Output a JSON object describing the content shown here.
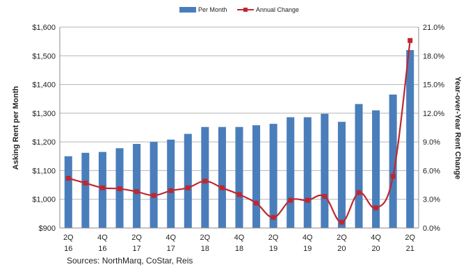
{
  "chart_data": {
    "type": "bar",
    "legend_position": "top-center",
    "grid": true,
    "categories": [
      "2Q 16",
      "3Q 16",
      "4Q 16",
      "1Q 17",
      "2Q 17",
      "3Q 17",
      "4Q 17",
      "1Q 18",
      "2Q 18",
      "3Q 18",
      "4Q 18",
      "1Q 19",
      "2Q 19",
      "3Q 19",
      "4Q 19",
      "1Q 20",
      "2Q 20",
      "3Q 20",
      "4Q 20",
      "1Q 21",
      "2Q 21"
    ],
    "tick_labels": [
      {
        "index": 0,
        "top": "2Q",
        "bottom": "16"
      },
      {
        "index": 2,
        "top": "4Q",
        "bottom": "16"
      },
      {
        "index": 4,
        "top": "2Q",
        "bottom": "17"
      },
      {
        "index": 6,
        "top": "4Q",
        "bottom": "17"
      },
      {
        "index": 8,
        "top": "2Q",
        "bottom": "18"
      },
      {
        "index": 10,
        "top": "4Q",
        "bottom": "18"
      },
      {
        "index": 12,
        "top": "2Q",
        "bottom": "19"
      },
      {
        "index": 14,
        "top": "4Q",
        "bottom": "19"
      },
      {
        "index": 16,
        "top": "2Q",
        "bottom": "20"
      },
      {
        "index": 18,
        "top": "4Q",
        "bottom": "20"
      },
      {
        "index": 20,
        "top": "2Q",
        "bottom": "21"
      }
    ],
    "series": [
      {
        "name": "Per Month",
        "type": "bar",
        "axis": "left",
        "color": "#4A7EBB",
        "values": [
          1150,
          1162,
          1165,
          1178,
          1193,
          1200,
          1208,
          1228,
          1252,
          1252,
          1252,
          1258,
          1263,
          1286,
          1286,
          1298,
          1270,
          1332,
          1310,
          1365,
          1520
        ]
      },
      {
        "name": "Annual Change",
        "type": "line",
        "axis": "right",
        "color": "#C0272D",
        "values": [
          5.2,
          4.7,
          4.2,
          4.1,
          3.8,
          3.4,
          3.9,
          4.2,
          4.9,
          4.2,
          3.5,
          2.6,
          1.1,
          2.9,
          2.9,
          3.3,
          0.6,
          3.7,
          2.1,
          5.4,
          19.6
        ]
      }
    ],
    "y_left": {
      "label": "Asking Rent per Month",
      "min": 900,
      "max": 1600,
      "ticks": [
        "$900",
        "$1,000",
        "$1,100",
        "$1,200",
        "$1,300",
        "$1,400",
        "$1,500",
        "$1,600"
      ]
    },
    "y_right": {
      "label": "Year-over-Year Rent Change",
      "min": 0,
      "max": 21,
      "ticks": [
        "0.0%",
        "3.0%",
        "6.0%",
        "9.0%",
        "12.0%",
        "15.0%",
        "18.0%",
        "21.0%"
      ]
    }
  },
  "source": "Sources: NorthMarq, CoStar, Reis"
}
